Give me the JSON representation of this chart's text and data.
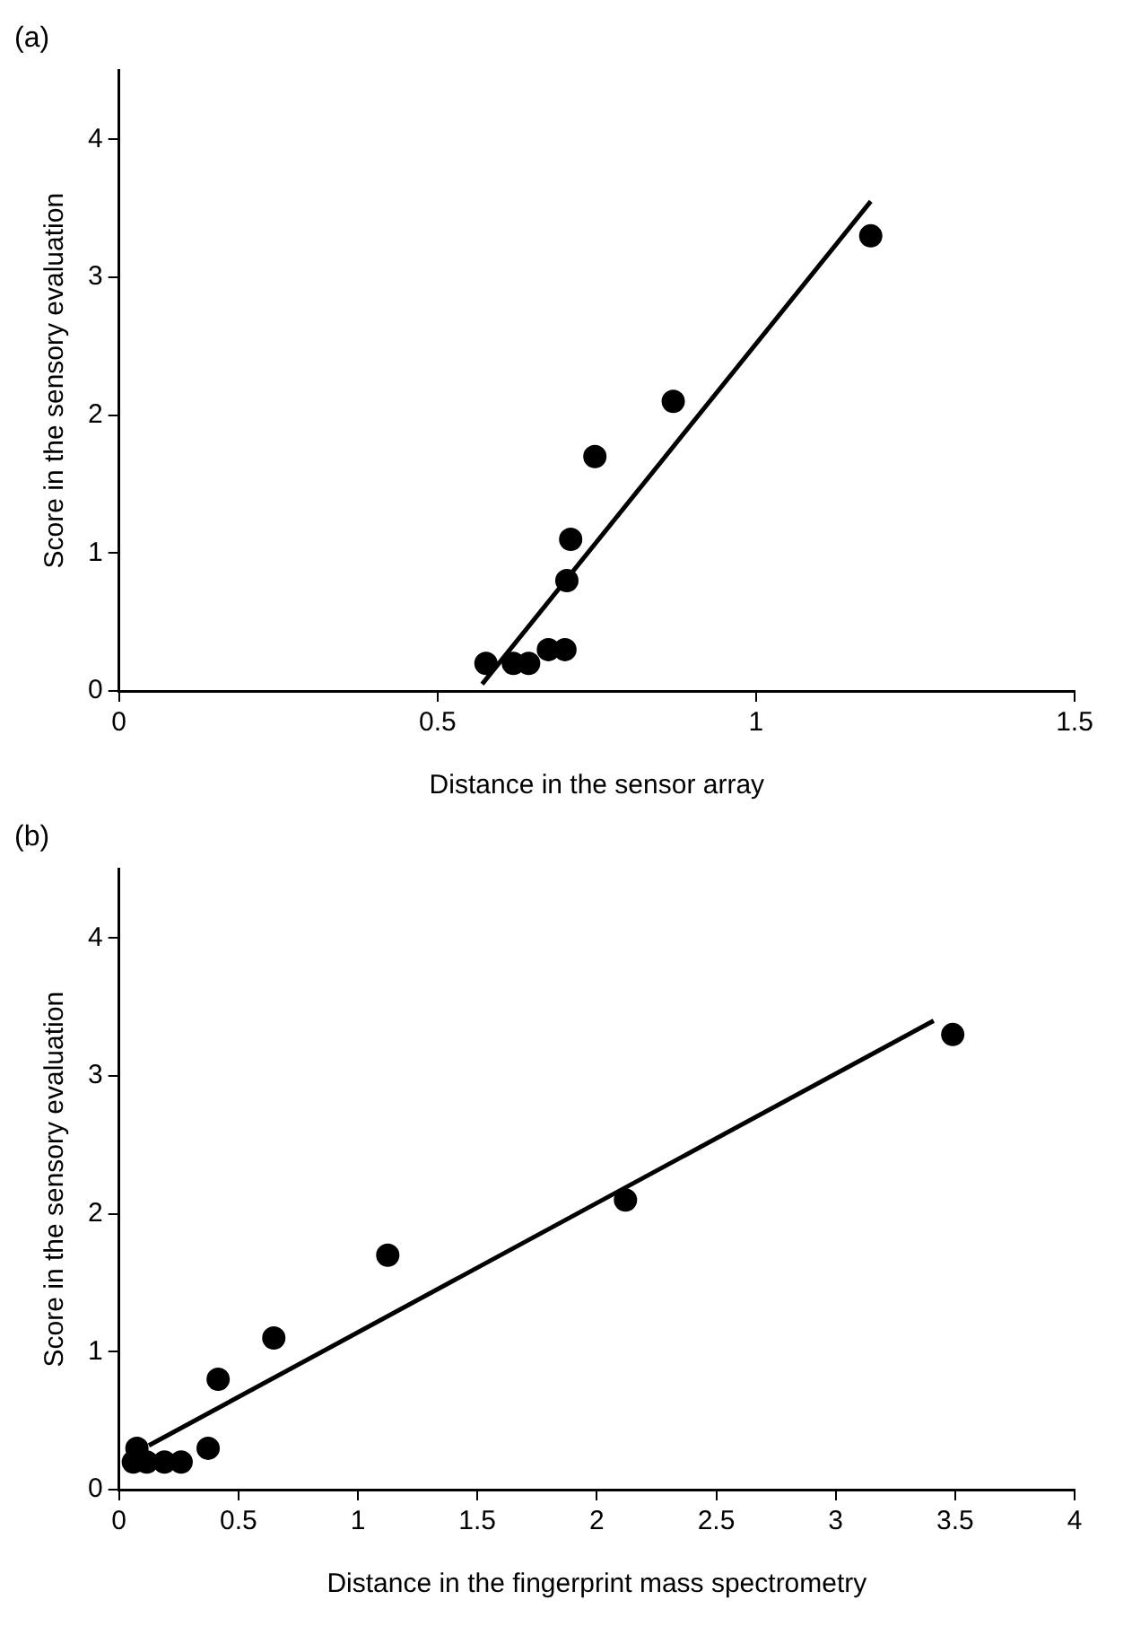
{
  "chart_data": [
    {
      "type": "scatter",
      "title": "(a)",
      "xlabel": "Distance in the sensor array",
      "ylabel": "Score in the sensory evaluation",
      "xlim": [
        0,
        1.5
      ],
      "xticks": [
        0,
        0.5,
        1,
        1.5
      ],
      "ylim": [
        0,
        4.5
      ],
      "yticks": [
        0,
        1,
        2,
        3,
        4
      ],
      "grid": false,
      "legend": false,
      "marker": "circle",
      "series": [
        {
          "color": "#000000",
          "x": [
            0.576,
            0.619,
            0.643,
            0.674,
            0.7,
            0.703,
            0.709,
            0.747,
            0.87,
            1.18
          ],
          "values": [
            0.2,
            0.2,
            0.2,
            0.3,
            0.3,
            0.8,
            1.1,
            1.7,
            2.1,
            3.3
          ]
        },
        {
          "type": "line",
          "color": "#000000",
          "marker": "none",
          "line_style": "solid",
          "x": [
            0.57,
            1.18
          ],
          "values": [
            0.05,
            3.55
          ]
        }
      ]
    },
    {
      "type": "scatter",
      "title": "(b)",
      "xlabel": "Distance in the fingerprint mass spectrometry",
      "ylabel": "Score in the sensory evaluation",
      "xlim": [
        0,
        4
      ],
      "xticks": [
        0,
        0.5,
        1,
        1.5,
        2,
        2.5,
        3,
        3.5,
        4
      ],
      "ylim": [
        0,
        4.5
      ],
      "yticks": [
        0,
        1,
        2,
        3,
        4
      ],
      "grid": false,
      "legend": false,
      "marker": "circle",
      "series": [
        {
          "color": "#000000",
          "x": [
            0.06,
            0.075,
            0.116,
            0.19,
            0.26,
            0.373,
            0.415,
            0.648,
            1.125,
            2.12,
            3.49
          ],
          "values": [
            0.2,
            0.3,
            0.2,
            0.2,
            0.2,
            0.3,
            0.8,
            1.1,
            1.7,
            2.1,
            3.3
          ]
        },
        {
          "type": "line",
          "color": "#000000",
          "marker": "none",
          "line_style": "solid",
          "x": [
            0.125,
            3.41
          ],
          "values": [
            0.32,
            3.4
          ]
        }
      ]
    }
  ]
}
